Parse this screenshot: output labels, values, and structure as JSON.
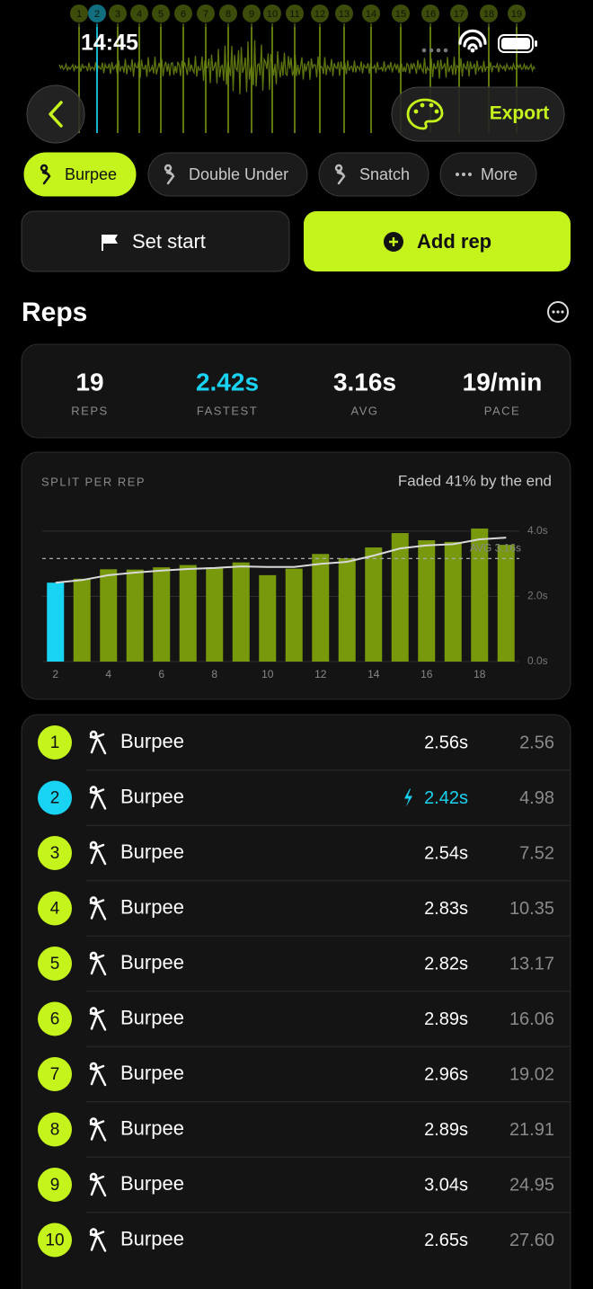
{
  "status_bar": {
    "time": "14:45"
  },
  "waveform": {
    "markers": [
      "1",
      "2",
      "3",
      "4",
      "5",
      "6",
      "7",
      "8",
      "9",
      "10",
      "11",
      "12",
      "13",
      "14",
      "15",
      "16",
      "17",
      "18",
      "19"
    ]
  },
  "toolbar": {
    "export": "Export"
  },
  "chips": [
    {
      "label": "Burpee",
      "selected": true
    },
    {
      "label": "Double Under",
      "selected": false
    },
    {
      "label": "Snatch",
      "selected": false
    },
    {
      "label": "More",
      "selected": false
    }
  ],
  "actions": {
    "set_start": "Set start",
    "add_rep": "Add rep"
  },
  "reps_section": {
    "title": "Reps"
  },
  "stats": [
    {
      "value": "19",
      "label": "REPS",
      "highlight": false
    },
    {
      "value": "2.42s",
      "label": "FASTEST",
      "highlight": true
    },
    {
      "value": "3.16s",
      "label": "AVG",
      "highlight": false
    },
    {
      "value": "19/min",
      "label": "PACE",
      "highlight": false
    }
  ],
  "chart_data": {
    "type": "bar",
    "title": "SPLIT PER REP",
    "subtitle": "Faded 41% by the end",
    "x": [
      2,
      3,
      4,
      5,
      6,
      7,
      8,
      9,
      10,
      11,
      12,
      13,
      14,
      15,
      16,
      17,
      18,
      19
    ],
    "values": [
      2.42,
      2.54,
      2.83,
      2.82,
      2.89,
      2.96,
      2.89,
      3.04,
      2.65,
      2.85,
      3.3,
      3.17,
      3.5,
      3.94,
      3.72,
      3.67,
      4.08,
      3.58
    ],
    "colors": [
      "#19d3f2",
      "#78990c",
      "#78990c",
      "#78990c",
      "#78990c",
      "#78990c",
      "#78990c",
      "#78990c",
      "#78990c",
      "#78990c",
      "#78990c",
      "#78990c",
      "#78990c",
      "#78990c",
      "#78990c",
      "#78990c",
      "#78990c",
      "#78990c"
    ],
    "trend": [
      2.42,
      2.5,
      2.65,
      2.73,
      2.79,
      2.84,
      2.87,
      2.92,
      2.9,
      2.9,
      3.0,
      3.06,
      3.25,
      3.47,
      3.56,
      3.6,
      3.75,
      3.8
    ],
    "trend_color": "#d9d9d9",
    "avg_line": {
      "value": 3.16,
      "label": "AVG 3.16s"
    },
    "xlim": [
      1.5,
      19.5
    ],
    "xticks": [
      2,
      4,
      6,
      8,
      10,
      12,
      14,
      16,
      18
    ],
    "ylim": [
      0,
      4.3
    ],
    "yticks": [
      {
        "value": 0,
        "label": "0.0s"
      },
      {
        "value": 2,
        "label": "2.0s"
      },
      {
        "value": 4,
        "label": "4.0s"
      }
    ],
    "grid": true
  },
  "rep_list": {
    "rows": [
      {
        "number": "1",
        "exercise": "Burpee",
        "split": "2.56s",
        "total": "2.56",
        "fastest": false
      },
      {
        "number": "2",
        "exercise": "Burpee",
        "split": "2.42s",
        "total": "4.98",
        "fastest": true
      },
      {
        "number": "3",
        "exercise": "Burpee",
        "split": "2.54s",
        "total": "7.52",
        "fastest": false
      },
      {
        "number": "4",
        "exercise": "Burpee",
        "split": "2.83s",
        "total": "10.35",
        "fastest": false
      },
      {
        "number": "5",
        "exercise": "Burpee",
        "split": "2.82s",
        "total": "13.17",
        "fastest": false
      },
      {
        "number": "6",
        "exercise": "Burpee",
        "split": "2.89s",
        "total": "16.06",
        "fastest": false
      },
      {
        "number": "7",
        "exercise": "Burpee",
        "split": "2.96s",
        "total": "19.02",
        "fastest": false
      },
      {
        "number": "8",
        "exercise": "Burpee",
        "split": "2.89s",
        "total": "21.91",
        "fastest": false
      },
      {
        "number": "9",
        "exercise": "Burpee",
        "split": "3.04s",
        "total": "24.95",
        "fastest": false
      },
      {
        "number": "10",
        "exercise": "Burpee",
        "split": "2.65s",
        "total": "27.60",
        "fastest": false
      }
    ]
  }
}
